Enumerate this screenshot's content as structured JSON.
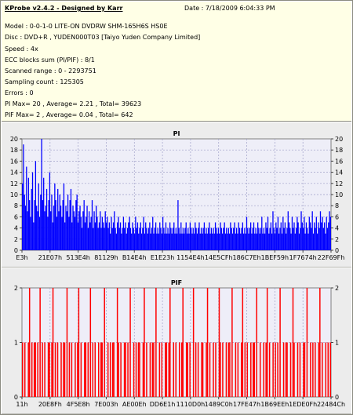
{
  "header": {
    "app_title": "KProbe v2.4.2 - Designed by Karr",
    "date": "Date : 7/18/2009 6:04:33 PM"
  },
  "info_lines": [
    "Model : 0-0-1-0 LITE-ON DVDRW SHM-165H6S HS0E",
    "Disc : DVD+R , YUDEN000T03 [Taiyo Yuden Company Limited]",
    "Speed : 4x",
    "ECC blocks sum (PI/PIF) : 8/1",
    "Scanned range : 0 - 2293751",
    "Sampling count : 125305",
    "Errors : 0",
    "PI Max= 20 , Average= 2.21 , Total= 39623",
    "PIF Max= 2 , Average= 0.04 , Total= 642"
  ],
  "chart_data": [
    {
      "type": "bar",
      "title": "PI",
      "ylim": [
        0,
        20
      ],
      "y_ticks": [
        "0",
        "2",
        "4",
        "6",
        "8",
        "10",
        "12",
        "14",
        "16",
        "18",
        "20"
      ],
      "x_ticks": [
        "E3h",
        "21E07h",
        "513E4h",
        "81129h",
        "B14E4h",
        "E1E23h",
        "1154E4h",
        "14E5CFh",
        "186C7Eh",
        "1BEF59h",
        "1F7674h",
        "22F69Fh"
      ],
      "color": "#0000ff",
      "grid": true,
      "values": [
        12,
        19,
        10,
        8,
        15,
        7,
        13,
        9,
        6,
        11,
        14,
        5,
        9,
        16,
        8,
        7,
        12,
        6,
        10,
        20,
        9,
        13,
        7,
        8,
        11,
        6,
        9,
        14,
        7,
        10,
        5,
        8,
        12,
        9,
        6,
        11,
        7,
        10,
        8,
        6,
        9,
        12,
        5,
        8,
        7,
        10,
        6,
        9,
        11,
        5,
        8,
        7,
        6,
        9,
        10,
        5,
        7,
        8,
        6,
        4,
        7,
        9,
        5,
        6,
        8,
        4,
        7,
        5,
        6,
        9,
        4,
        7,
        5,
        8,
        6,
        4,
        5,
        7,
        4,
        6,
        5,
        4,
        7,
        5,
        6,
        4,
        5,
        3,
        6,
        4,
        5,
        7,
        4,
        3,
        5,
        6,
        4,
        5,
        3,
        4,
        6,
        4,
        5,
        3,
        4,
        5,
        6,
        4,
        3,
        5,
        4,
        3,
        6,
        4,
        5,
        3,
        4,
        5,
        3,
        4,
        6,
        3,
        5,
        4,
        3,
        4,
        5,
        3,
        4,
        6,
        3,
        4,
        5,
        3,
        4,
        3,
        5,
        4,
        3,
        6,
        4,
        3,
        5,
        3,
        4,
        3,
        5,
        4,
        3,
        4,
        5,
        3,
        4,
        3,
        9,
        4,
        3,
        5,
        3,
        4,
        3,
        4,
        5,
        3,
        4,
        3,
        5,
        4,
        3,
        4,
        3,
        5,
        4,
        3,
        4,
        5,
        3,
        4,
        3,
        4,
        5,
        3,
        4,
        3,
        4,
        5,
        3,
        4,
        3,
        4,
        3,
        5,
        4,
        3,
        4,
        3,
        5,
        4,
        3,
        4,
        5,
        3,
        4,
        3,
        4,
        3,
        5,
        4,
        3,
        4,
        5,
        3,
        4,
        3,
        5,
        4,
        3,
        4,
        5,
        3,
        4,
        3,
        6,
        4,
        3,
        4,
        5,
        3,
        4,
        5,
        3,
        4,
        3,
        5,
        4,
        3,
        4,
        6,
        3,
        4,
        3,
        5,
        4,
        6,
        3,
        4,
        5,
        3,
        7,
        4,
        3,
        5,
        4,
        6,
        3,
        4,
        5,
        3,
        6,
        4,
        5,
        3,
        4,
        7,
        5,
        4,
        3,
        6,
        4,
        5,
        3,
        4,
        6,
        5,
        3,
        4,
        7,
        5,
        4,
        6,
        3,
        5,
        4,
        3,
        6,
        5,
        4,
        7,
        3,
        5,
        4,
        6,
        3,
        5,
        4,
        7,
        5,
        6,
        4,
        5,
        3,
        6,
        4,
        5,
        7,
        6
      ]
    },
    {
      "type": "bar",
      "title": "PIF",
      "ylim": [
        0,
        2
      ],
      "y_ticks": [
        "0",
        "1",
        "2"
      ],
      "x_ticks": [
        "11h",
        "20E8Fh",
        "4F5E8h",
        "7E003h",
        "AE00Eh",
        "DD6E1h",
        "1110D0h",
        "1489C0h",
        "17FE47h",
        "1B69EEh",
        "1EDE0Fh",
        "22484Ch"
      ],
      "color": "#ff0000",
      "grid": true,
      "values": [
        1,
        0,
        1,
        0,
        0,
        1,
        2,
        0,
        1,
        0,
        1,
        1,
        0,
        1,
        0,
        2,
        0,
        1,
        0,
        1,
        0,
        0,
        1,
        1,
        0,
        1,
        2,
        0,
        1,
        0,
        1,
        0,
        0,
        1,
        0,
        1,
        1,
        0,
        2,
        0,
        1,
        0,
        1,
        0,
        0,
        1,
        0,
        1,
        2,
        0,
        1,
        0,
        0,
        1,
        1,
        0,
        1,
        0,
        2,
        0,
        1,
        0,
        1,
        0,
        0,
        1,
        0,
        1,
        1,
        0,
        2,
        0,
        0,
        1,
        0,
        1,
        0,
        1,
        1,
        0,
        0,
        2,
        1,
        0,
        1,
        0,
        0,
        1,
        1,
        0,
        1,
        0,
        2,
        0,
        0,
        1,
        0,
        1,
        0,
        1,
        1,
        0,
        0,
        1,
        2,
        0,
        1,
        0,
        0,
        1,
        0,
        1,
        1,
        0,
        2,
        0,
        0,
        1,
        0,
        1,
        0,
        0,
        1,
        1,
        0,
        1,
        2,
        0,
        0,
        1,
        0,
        1,
        0,
        0,
        1,
        0,
        1,
        2,
        0,
        0,
        1,
        1,
        0,
        1,
        0,
        0,
        2,
        0,
        1,
        0,
        1,
        0,
        0,
        1,
        1,
        0,
        0,
        1,
        2,
        0,
        1,
        0,
        0,
        1,
        0,
        1,
        0,
        0,
        2,
        1,
        0,
        1,
        0,
        0,
        1,
        0,
        1,
        1,
        0,
        2,
        0,
        0,
        1,
        0,
        1,
        0,
        0,
        1,
        2,
        0,
        1,
        0,
        1,
        0,
        0,
        1,
        0,
        1,
        1,
        0,
        2,
        0,
        0,
        1,
        0,
        0,
        1,
        0,
        1,
        2,
        0,
        1,
        0,
        0,
        1,
        0,
        1,
        0,
        1,
        0,
        2,
        0,
        0,
        1,
        0,
        1,
        1,
        0,
        0,
        1,
        0,
        2,
        1,
        0,
        0,
        1,
        0,
        1,
        0,
        0,
        1,
        1,
        0,
        2,
        0,
        0,
        1,
        0,
        1,
        0,
        1,
        0,
        0,
        1,
        2,
        0,
        1,
        0,
        0,
        1,
        0,
        1,
        0,
        1
      ]
    }
  ]
}
